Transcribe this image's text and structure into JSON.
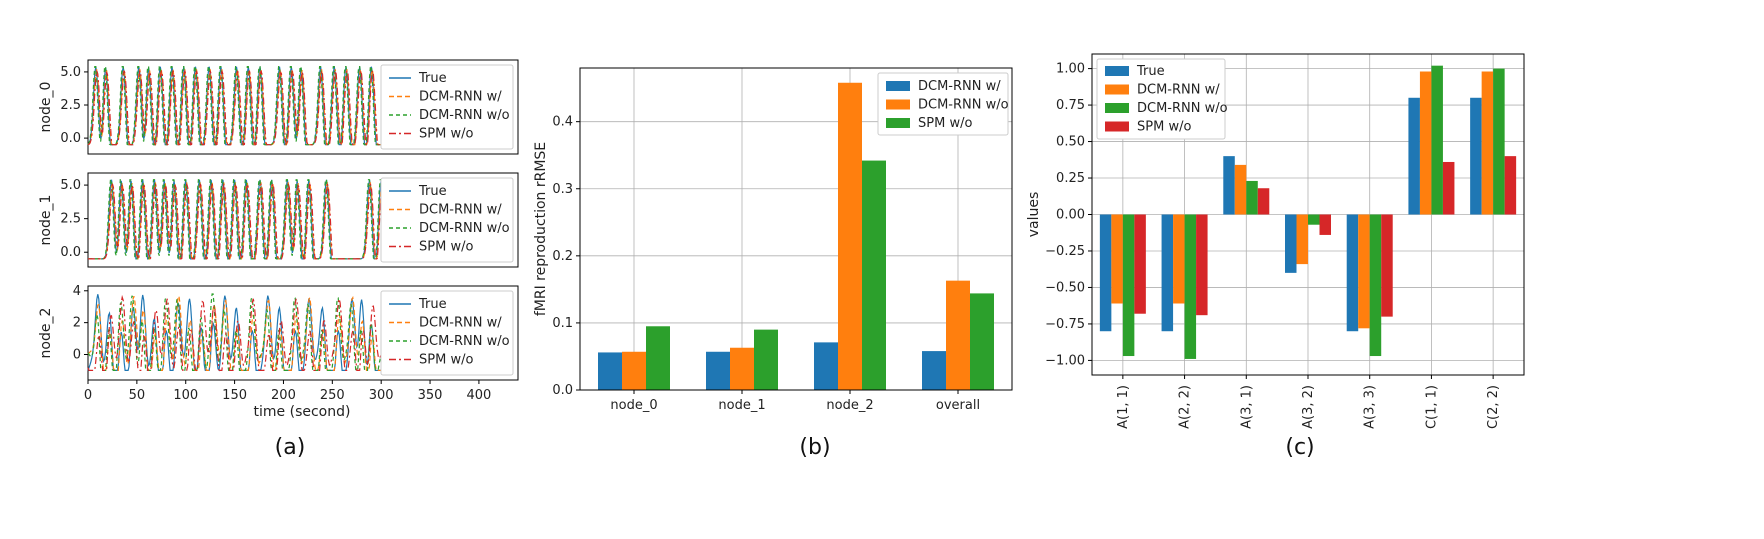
{
  "colors": {
    "blue": "#1f77b4",
    "orange": "#ff7f0e",
    "green": "#2ca02c",
    "red": "#d62728",
    "grid": "#b0b0b0"
  },
  "chart_data": [
    {
      "type": "line",
      "panel_label": "(a)",
      "xlabel": "time (second)",
      "xlim": [
        0,
        440
      ],
      "xticks": [
        0,
        50,
        100,
        150,
        200,
        250,
        300,
        350,
        400
      ],
      "legend": [
        "True",
        "DCM-RNN w/",
        "DCM-RNN w/o",
        "SPM w/o"
      ],
      "legend_position": "right",
      "subplots": [
        {
          "ylabel": "node_0",
          "ylim": [
            -1.2,
            5.9
          ],
          "yticks": [
            0.0,
            2.5,
            5.0
          ],
          "signal_range": [
            -0.5,
            5.4
          ],
          "peak_times": [
            8,
            18,
            36,
            52,
            62,
            74,
            86,
            98,
            110,
            124,
            136,
            152,
            164,
            176,
            196,
            208,
            218,
            238,
            252,
            264,
            278,
            290
          ]
        },
        {
          "ylabel": "node_1",
          "ylim": [
            -1.1,
            5.9
          ],
          "yticks": [
            0.0,
            2.5,
            5.0
          ],
          "signal_range": [
            -0.5,
            5.4
          ],
          "peak_times": [
            24,
            34,
            44,
            56,
            68,
            78,
            88,
            100,
            114,
            126,
            138,
            150,
            162,
            176,
            188,
            204,
            214,
            226,
            244,
            288,
            300
          ]
        },
        {
          "ylabel": "node_2",
          "ylim": [
            -1.6,
            4.3
          ],
          "yticks": [
            0,
            2,
            4
          ],
          "signal_range": [
            -1.0,
            3.8
          ],
          "peak_times": [
            10,
            22,
            34,
            46,
            56,
            68,
            80,
            92,
            104,
            116,
            128,
            140,
            152,
            168,
            184,
            196,
            212,
            226,
            240,
            256,
            270,
            280,
            290
          ]
        }
      ],
      "series": [
        {
          "name": "True",
          "style": "solid"
        },
        {
          "name": "DCM-RNN w/",
          "style": "dashed"
        },
        {
          "name": "DCM-RNN w/o",
          "style": "dashed"
        },
        {
          "name": "SPM w/o",
          "style": "dashdot"
        }
      ]
    },
    {
      "type": "bar",
      "panel_label": "(b)",
      "ylabel": "fMRI reproduction rRMSE",
      "ylim": [
        0,
        0.48
      ],
      "yticks": [
        0.0,
        0.1,
        0.2,
        0.3,
        0.4
      ],
      "categories": [
        "node_0",
        "node_1",
        "node_2",
        "overall"
      ],
      "legend_position": "top-right",
      "series": [
        {
          "name": "DCM-RNN w/",
          "values": [
            0.056,
            0.057,
            0.071,
            0.058
          ]
        },
        {
          "name": "DCM-RNN w/o",
          "values": [
            0.057,
            0.063,
            0.458,
            0.163
          ]
        },
        {
          "name": "SPM w/o",
          "values": [
            0.095,
            0.09,
            0.342,
            0.144
          ]
        }
      ]
    },
    {
      "type": "bar",
      "panel_label": "(c)",
      "ylabel": "values",
      "ylim": [
        -1.1,
        1.1
      ],
      "yticks": [
        1.0,
        0.75,
        0.5,
        0.25,
        0.0,
        -0.25,
        -0.5,
        -0.75,
        -1.0
      ],
      "categories": [
        "A(1, 1)",
        "A(2, 2)",
        "A(3, 1)",
        "A(3, 2)",
        "A(3, 3)",
        "C(1, 1)",
        "C(2, 2)"
      ],
      "legend_position": "top-left",
      "series": [
        {
          "name": "True",
          "values": [
            -0.8,
            -0.8,
            0.4,
            -0.4,
            -0.8,
            0.8,
            0.8
          ]
        },
        {
          "name": "DCM-RNN w/",
          "values": [
            -0.61,
            -0.61,
            0.34,
            -0.34,
            -0.78,
            0.98,
            0.98
          ]
        },
        {
          "name": "DCM-RNN w/o",
          "values": [
            -0.97,
            -0.99,
            0.23,
            -0.07,
            -0.97,
            1.02,
            1.0
          ]
        },
        {
          "name": "SPM w/o",
          "values": [
            -0.68,
            -0.69,
            0.18,
            -0.14,
            -0.7,
            0.36,
            0.4
          ]
        }
      ]
    }
  ]
}
